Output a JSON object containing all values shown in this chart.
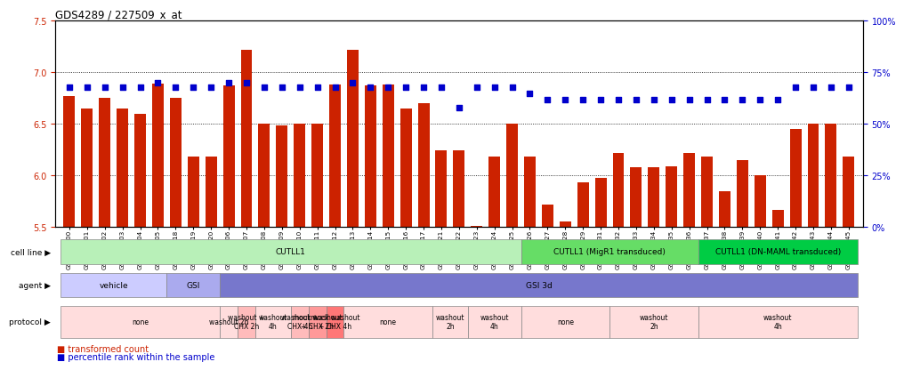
{
  "title": "GDS4289 / 227509_x_at",
  "samples": [
    "GSM731500",
    "GSM731501",
    "GSM731502",
    "GSM731503",
    "GSM731504",
    "GSM731505",
    "GSM731518",
    "GSM731519",
    "GSM731520",
    "GSM731506",
    "GSM731507",
    "GSM731508",
    "GSM731509",
    "GSM731510",
    "GSM731511",
    "GSM731512",
    "GSM731513",
    "GSM731514",
    "GSM731515",
    "GSM731516",
    "GSM731517",
    "GSM731521",
    "GSM731522",
    "GSM731523",
    "GSM731524",
    "GSM731525",
    "GSM731526",
    "GSM731527",
    "GSM731528",
    "GSM731529",
    "GSM731531",
    "GSM731532",
    "GSM731533",
    "GSM731534",
    "GSM731535",
    "GSM731536",
    "GSM731537",
    "GSM731538",
    "GSM731539",
    "GSM731540",
    "GSM731541",
    "GSM731542",
    "GSM731543",
    "GSM731544",
    "GSM731545"
  ],
  "bar_values": [
    6.77,
    6.65,
    6.75,
    6.65,
    6.6,
    6.89,
    6.75,
    6.18,
    6.18,
    6.87,
    7.22,
    6.5,
    6.49,
    6.5,
    6.5,
    6.88,
    7.22,
    6.87,
    6.88,
    6.65,
    6.7,
    6.24,
    6.24,
    5.51,
    6.18,
    6.5,
    6.18,
    5.72,
    5.55,
    5.93,
    5.98,
    6.22,
    6.08,
    6.08,
    6.09,
    6.22,
    6.18,
    5.85,
    6.15,
    6.0,
    5.67,
    6.45,
    6.5,
    6.5,
    6.18
  ],
  "percentile_values": [
    68,
    68,
    68,
    68,
    68,
    70,
    68,
    68,
    68,
    70,
    70,
    68,
    68,
    68,
    68,
    68,
    70,
    68,
    68,
    68,
    68,
    68,
    58,
    68,
    68,
    68,
    65,
    62,
    62,
    62,
    62,
    62,
    62,
    62,
    62,
    62,
    62,
    62,
    62,
    62,
    62,
    68,
    68,
    68,
    68
  ],
  "ylim_left": [
    5.5,
    7.5
  ],
  "ylim_right": [
    0,
    100
  ],
  "yticks_left": [
    5.5,
    6.0,
    6.5,
    7.0,
    7.5
  ],
  "yticks_right": [
    0,
    25,
    50,
    75,
    100
  ],
  "bar_color": "#cc2200",
  "dot_color": "#0000cc",
  "grid_values": [
    6.0,
    6.5,
    7.0
  ],
  "cell_line_groups": [
    {
      "label": "CUTLL1",
      "start": 0,
      "end": 26,
      "color": "#b8f0b8"
    },
    {
      "label": "CUTLL1 (MigR1 transduced)",
      "start": 26,
      "end": 36,
      "color": "#66dd66"
    },
    {
      "label": "CUTLL1 (DN-MAML transduced)",
      "start": 36,
      "end": 45,
      "color": "#00cc44"
    }
  ],
  "agent_groups": [
    {
      "label": "vehicle",
      "start": 0,
      "end": 6,
      "color": "#ccccff"
    },
    {
      "label": "GSI",
      "start": 6,
      "end": 9,
      "color": "#aaaaee"
    },
    {
      "label": "GSI 3d",
      "start": 9,
      "end": 45,
      "color": "#7777cc"
    }
  ],
  "protocol_groups": [
    {
      "label": "none",
      "start": 0,
      "end": 9,
      "color": "#ffdddd"
    },
    {
      "label": "washout 2h",
      "start": 9,
      "end": 10,
      "color": "#ffdddd"
    },
    {
      "label": "washout +\nCHX 2h",
      "start": 10,
      "end": 11,
      "color": "#ffbbbb"
    },
    {
      "label": "washout\n4h",
      "start": 11,
      "end": 13,
      "color": "#ffdddd"
    },
    {
      "label": "washout +\nCHX 4h",
      "start": 13,
      "end": 14,
      "color": "#ffbbbb"
    },
    {
      "label": "mock washout\n+ CHX 2h",
      "start": 14,
      "end": 15,
      "color": "#ff9999"
    },
    {
      "label": "mock washout\n+ CHX 4h",
      "start": 15,
      "end": 16,
      "color": "#ff7777"
    },
    {
      "label": "none",
      "start": 16,
      "end": 21,
      "color": "#ffdddd"
    },
    {
      "label": "washout\n2h",
      "start": 21,
      "end": 23,
      "color": "#ffdddd"
    },
    {
      "label": "washout\n4h",
      "start": 23,
      "end": 26,
      "color": "#ffdddd"
    },
    {
      "label": "none",
      "start": 26,
      "end": 31,
      "color": "#ffdddd"
    },
    {
      "label": "washout\n2h",
      "start": 31,
      "end": 36,
      "color": "#ffdddd"
    },
    {
      "label": "washout\n4h",
      "start": 36,
      "end": 45,
      "color": "#ffdddd"
    }
  ],
  "row_labels": [
    "cell line",
    "agent",
    "protocol"
  ],
  "legend_bar_label": "transformed count",
  "legend_dot_label": "percentile rank within the sample"
}
